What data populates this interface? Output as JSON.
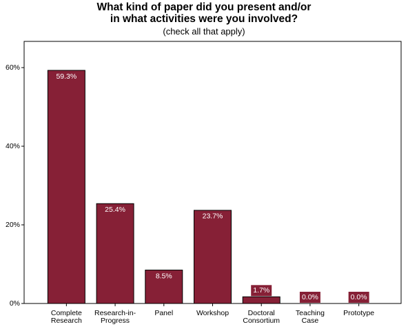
{
  "chart_data": {
    "type": "bar",
    "title": "What kind of paper did you present and/or\nin what activities were you involved?",
    "subtitle": "(check all that apply)",
    "categories": [
      "Complete Research",
      "Research-in-Progress",
      "Panel",
      "Workshop",
      "Doctoral Consortium",
      "Teaching Case",
      "Prototype"
    ],
    "values": [
      59.3,
      25.4,
      8.5,
      23.7,
      1.7,
      0,
      0
    ],
    "value_labels": [
      "59.3%",
      "25.4%",
      "8.5%",
      "23.7%",
      "1.7%",
      "0.0%",
      "0.0%"
    ],
    "color": "#862036",
    "ylim": [
      0,
      66.67
    ],
    "yticks": [
      {
        "value": 0,
        "label": "0%"
      },
      {
        "value": 20,
        "label": "20%"
      },
      {
        "value": 40,
        "label": "40%"
      },
      {
        "value": 60,
        "label": "60%"
      }
    ],
    "grid": false
  }
}
